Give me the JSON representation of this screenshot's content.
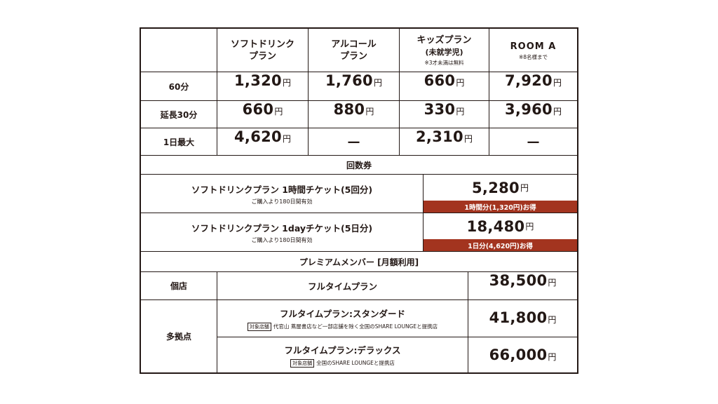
{
  "headers": [
    {
      "line1": "ソフトドリンク",
      "line2": "プラン",
      "note": ""
    },
    {
      "line1": "アルコール",
      "line2": "プラン",
      "note": ""
    },
    {
      "line1": "キッズプラン",
      "line2": "(未就学児)",
      "note": "※3才未満は無料"
    },
    {
      "line1": "ROOM A",
      "line2": "",
      "note": "※8名様まで"
    }
  ],
  "rows": [
    {
      "label": "60分",
      "prices": [
        "1,320",
        "1,760",
        "660",
        "7,920"
      ]
    },
    {
      "label": "延長30分",
      "prices": [
        "660",
        "880",
        "330",
        "3,960"
      ]
    },
    {
      "label": "1日最大",
      "prices": [
        "4,620",
        "—",
        "2,310",
        "—"
      ]
    }
  ],
  "yen": "円",
  "section_tickets": "回数券",
  "tickets": [
    {
      "title": "ソフトドリンクプラン 1時間チケット(5回分)",
      "note": "ご購入より180日間有効",
      "price": "5,280",
      "deal": "1時間分(1,320円)お得"
    },
    {
      "title": "ソフトドリンクプラン 1dayチケット(5日分)",
      "note": "ご購入より180日間有効",
      "price": "18,480",
      "deal": "1日分(4,620円)お得"
    }
  ],
  "section_members": "プレミアムメンバー [月額利用]",
  "members": {
    "single_label": "個店",
    "multi_label": "多拠点",
    "single_plan": {
      "name": "フルタイムプラン",
      "price": "38,500"
    },
    "standard_plan": {
      "name": "フルタイムプラン:スタンダード",
      "tag": "対象店舗",
      "stores": "代官山 蔦屋書店など一部店舗を除く全国のSHARE LOUNGEと提携店",
      "price": "41,800"
    },
    "deluxe_plan": {
      "name": "フルタイムプラン:デラックス",
      "tag": "対象店舗",
      "stores": "全国のSHARE LOUNGEと提携店",
      "price": "66,000"
    }
  }
}
